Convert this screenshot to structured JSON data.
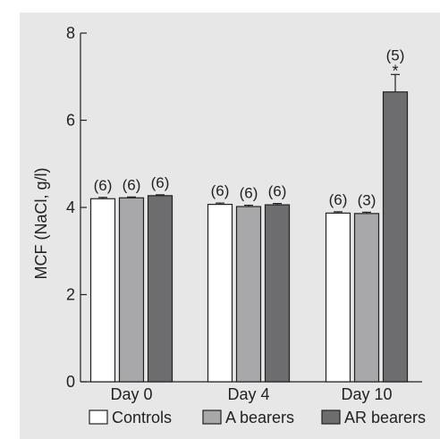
{
  "chart_data": {
    "type": "bar",
    "ylabel": "MCF (NaCl, g/l)",
    "ylim": [
      0,
      8
    ],
    "yticks": [
      0,
      2,
      4,
      6,
      8
    ],
    "categories": [
      "Day 0",
      "Day 4",
      "Day 10"
    ],
    "series": [
      {
        "name": "Controls",
        "color": "#ffffff",
        "values": [
          4.2,
          4.07,
          3.87
        ],
        "errors": [
          0.03,
          0.03,
          0.03
        ],
        "n": [
          "(6)",
          "(6)",
          "(6)"
        ]
      },
      {
        "name": "A bearers",
        "color": "#a8a8aa",
        "values": [
          4.22,
          4.02,
          3.86
        ],
        "errors": [
          0.02,
          0.03,
          0.03
        ],
        "n": [
          "(6)",
          "(6)",
          "(3)"
        ]
      },
      {
        "name": "AR bearers",
        "color": "#6d6d6f",
        "values": [
          4.27,
          4.06,
          6.65
        ],
        "errors": [
          0.02,
          0.03,
          0.4
        ],
        "n": [
          "(6)",
          "(6)",
          "(5)"
        ]
      }
    ],
    "annotations": [
      {
        "category": "Day 10",
        "series": "AR bearers",
        "text": "*"
      }
    ],
    "legend": "bottom",
    "grid": false
  }
}
